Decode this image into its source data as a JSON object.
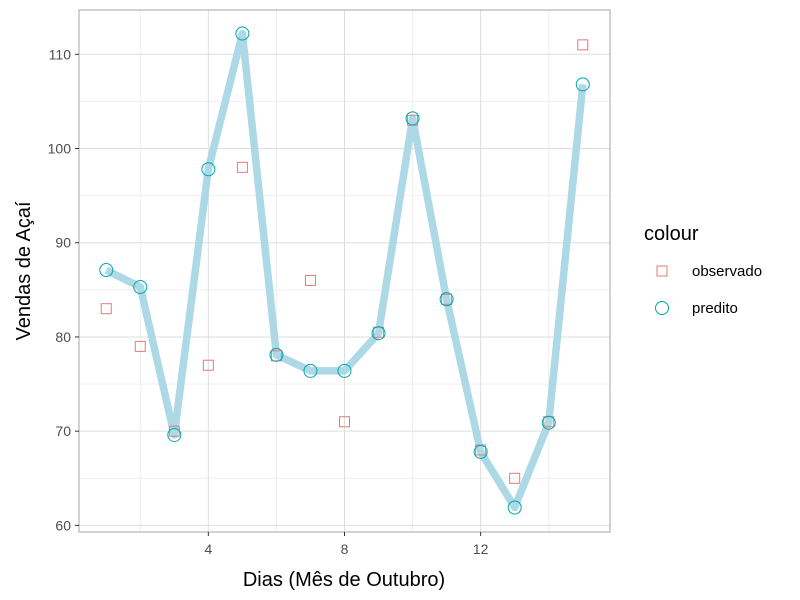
{
  "chart_data": {
    "type": "line",
    "xlabel": "Dias (Mês de Outubro)",
    "ylabel": "Vendas de Açaí",
    "xlim": [
      0.2,
      15.8
    ],
    "ylim": [
      59.3,
      114.7
    ],
    "x_ticks": [
      4,
      8,
      12
    ],
    "y_ticks": [
      60,
      70,
      80,
      90,
      100,
      110
    ],
    "grid": true,
    "legend": {
      "title": "colour",
      "position": "right",
      "entries": [
        {
          "label": "observado",
          "marker": "square",
          "color": "#e07b7b"
        },
        {
          "label": "predito",
          "marker": "circle",
          "color": "#00a8a8"
        }
      ]
    },
    "line_color": "#add8e6",
    "series": [
      {
        "name": "observado",
        "marker": "square",
        "color": "#e07b7b",
        "x": [
          1,
          2,
          3,
          4,
          5,
          6,
          7,
          8,
          9,
          10,
          11,
          12,
          13,
          14,
          15
        ],
        "y": [
          83,
          79,
          70,
          77,
          98,
          78,
          86,
          71,
          80.5,
          103,
          84,
          68,
          65,
          71,
          111
        ]
      },
      {
        "name": "predito",
        "marker": "circle",
        "color": "#00a8a8",
        "x": [
          1,
          2,
          3,
          4,
          5,
          6,
          7,
          8,
          9,
          10,
          11,
          12,
          13,
          14,
          15
        ],
        "y": [
          87.1,
          85.3,
          69.6,
          97.8,
          112.2,
          78.1,
          76.4,
          76.4,
          80.4,
          103.2,
          84.0,
          67.8,
          61.9,
          70.9,
          106.8
        ]
      }
    ]
  }
}
